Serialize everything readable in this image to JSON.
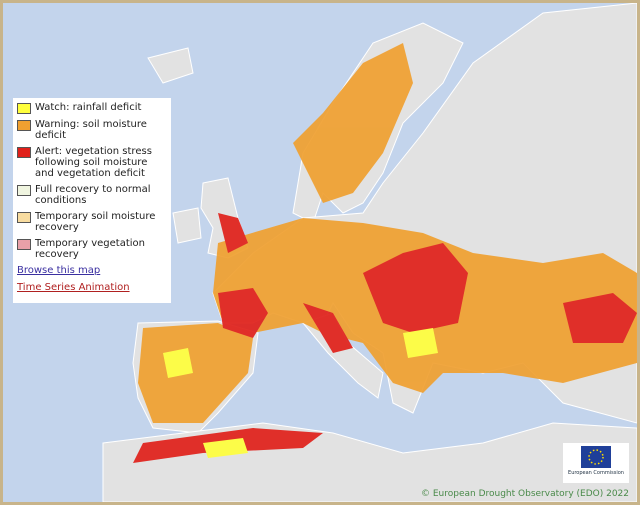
{
  "legend": {
    "items": [
      {
        "label": "Watch: rainfall deficit",
        "color": "#ffff3c"
      },
      {
        "label": "Warning: soil moisture deficit",
        "color": "#f0a030"
      },
      {
        "label": "Alert: vegetation stress following soil moisture and vegetation deficit",
        "color": "#e0201a"
      },
      {
        "label": "Full recovery to normal conditions",
        "color": "#f0f5e0"
      },
      {
        "label": "Temporary soil moisture recovery",
        "color": "#f8dca0"
      },
      {
        "label": "Temporary vegetation recovery",
        "color": "#e8a0a8"
      }
    ],
    "links": [
      "Browse this map",
      "Time Series Animation"
    ]
  },
  "logo": {
    "label": "European Commission"
  },
  "credit": "© European Drought Observatory (EDO) 2022"
}
